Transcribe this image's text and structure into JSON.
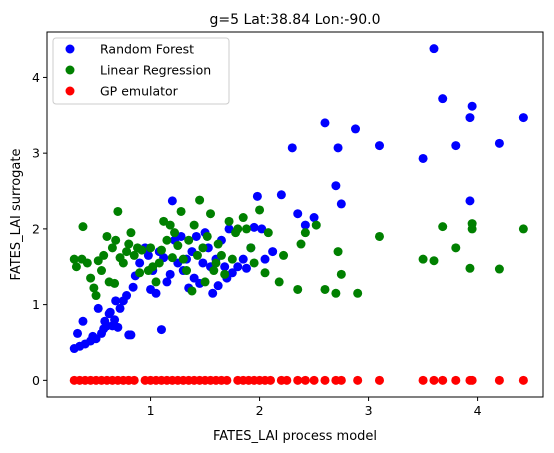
{
  "chart_data": {
    "type": "scatter",
    "title": "g=5 Lat:38.84 Lon:-90.0",
    "xlabel": "FATES_LAI process model",
    "ylabel": "FATES_LAI surrogate",
    "xlim": [
      0.05,
      4.6
    ],
    "ylim": [
      -0.22,
      4.6
    ],
    "xticks": [
      1,
      2,
      3,
      4
    ],
    "yticks": [
      0,
      1,
      2,
      3,
      4
    ],
    "grid": false,
    "legend_position": "upper-left",
    "series": [
      {
        "name": "Random Forest",
        "color": "#0000ff",
        "points": [
          [
            0.3,
            0.42
          ],
          [
            0.33,
            0.62
          ],
          [
            0.35,
            0.45
          ],
          [
            0.38,
            0.78
          ],
          [
            0.4,
            0.48
          ],
          [
            0.45,
            0.52
          ],
          [
            0.47,
            0.58
          ],
          [
            0.5,
            0.55
          ],
          [
            0.52,
            0.95
          ],
          [
            0.55,
            0.62
          ],
          [
            0.57,
            0.68
          ],
          [
            0.58,
            0.78
          ],
          [
            0.6,
            0.72
          ],
          [
            0.62,
            0.88
          ],
          [
            0.63,
            0.9
          ],
          [
            0.65,
            0.72
          ],
          [
            0.67,
            0.8
          ],
          [
            0.68,
            1.05
          ],
          [
            0.7,
            0.7
          ],
          [
            0.72,
            0.95
          ],
          [
            0.75,
            1.05
          ],
          [
            0.78,
            1.12
          ],
          [
            0.8,
            0.6
          ],
          [
            0.82,
            0.6
          ],
          [
            0.84,
            1.23
          ],
          [
            0.86,
            1.38
          ],
          [
            0.9,
            1.55
          ],
          [
            0.95,
            1.75
          ],
          [
            0.98,
            1.65
          ],
          [
            1.0,
            1.2
          ],
          [
            1.02,
            1.45
          ],
          [
            1.05,
            1.15
          ],
          [
            1.08,
            1.7
          ],
          [
            1.1,
            0.67
          ],
          [
            1.12,
            1.62
          ],
          [
            1.15,
            1.3
          ],
          [
            1.18,
            1.4
          ],
          [
            1.2,
            2.37
          ],
          [
            1.22,
            1.85
          ],
          [
            1.25,
            1.55
          ],
          [
            1.28,
            1.9
          ],
          [
            1.3,
            1.45
          ],
          [
            1.33,
            1.6
          ],
          [
            1.35,
            1.22
          ],
          [
            1.38,
            1.7
          ],
          [
            1.4,
            1.35
          ],
          [
            1.42,
            1.9
          ],
          [
            1.45,
            1.28
          ],
          [
            1.48,
            1.55
          ],
          [
            1.5,
            1.95
          ],
          [
            1.53,
            1.75
          ],
          [
            1.55,
            1.5
          ],
          [
            1.57,
            1.15
          ],
          [
            1.6,
            1.6
          ],
          [
            1.62,
            1.25
          ],
          [
            1.65,
            1.85
          ],
          [
            1.68,
            1.5
          ],
          [
            1.7,
            1.35
          ],
          [
            1.72,
            2.0
          ],
          [
            1.75,
            1.42
          ],
          [
            1.8,
            1.5
          ],
          [
            1.85,
            1.6
          ],
          [
            1.88,
            1.48
          ],
          [
            1.92,
            1.75
          ],
          [
            1.95,
            2.02
          ],
          [
            1.98,
            2.43
          ],
          [
            2.02,
            2.0
          ],
          [
            2.05,
            1.6
          ],
          [
            2.12,
            1.7
          ],
          [
            2.2,
            2.45
          ],
          [
            2.3,
            3.07
          ],
          [
            2.35,
            2.2
          ],
          [
            2.42,
            2.05
          ],
          [
            2.5,
            2.15
          ],
          [
            2.6,
            3.4
          ],
          [
            2.7,
            2.57
          ],
          [
            2.72,
            3.07
          ],
          [
            2.75,
            2.33
          ],
          [
            2.88,
            3.32
          ],
          [
            3.1,
            3.1
          ],
          [
            3.5,
            2.93
          ],
          [
            3.6,
            4.38
          ],
          [
            3.68,
            3.72
          ],
          [
            3.8,
            3.1
          ],
          [
            3.93,
            2.37
          ],
          [
            3.93,
            3.47
          ],
          [
            3.95,
            3.62
          ],
          [
            4.2,
            3.13
          ],
          [
            4.42,
            3.47
          ]
        ]
      },
      {
        "name": "Linear Regression",
        "color": "#008000",
        "points": [
          [
            0.3,
            1.6
          ],
          [
            0.32,
            1.5
          ],
          [
            0.37,
            1.6
          ],
          [
            0.38,
            2.03
          ],
          [
            0.42,
            1.55
          ],
          [
            0.45,
            1.35
          ],
          [
            0.48,
            1.22
          ],
          [
            0.5,
            1.12
          ],
          [
            0.52,
            1.58
          ],
          [
            0.55,
            1.45
          ],
          [
            0.57,
            1.65
          ],
          [
            0.6,
            1.9
          ],
          [
            0.62,
            1.3
          ],
          [
            0.65,
            1.75
          ],
          [
            0.67,
            1.28
          ],
          [
            0.68,
            1.85
          ],
          [
            0.7,
            2.23
          ],
          [
            0.72,
            1.62
          ],
          [
            0.75,
            1.55
          ],
          [
            0.78,
            1.7
          ],
          [
            0.8,
            1.8
          ],
          [
            0.82,
            1.95
          ],
          [
            0.85,
            1.65
          ],
          [
            0.88,
            1.75
          ],
          [
            0.9,
            1.42
          ],
          [
            0.92,
            1.72
          ],
          [
            0.98,
            1.45
          ],
          [
            1.0,
            1.75
          ],
          [
            1.02,
            1.5
          ],
          [
            1.05,
            1.3
          ],
          [
            1.08,
            1.55
          ],
          [
            1.1,
            1.72
          ],
          [
            1.12,
            2.1
          ],
          [
            1.15,
            1.85
          ],
          [
            1.18,
            2.05
          ],
          [
            1.2,
            1.62
          ],
          [
            1.22,
            1.95
          ],
          [
            1.25,
            1.78
          ],
          [
            1.28,
            2.23
          ],
          [
            1.3,
            1.6
          ],
          [
            1.33,
            1.45
          ],
          [
            1.35,
            1.85
          ],
          [
            1.38,
            1.18
          ],
          [
            1.4,
            2.05
          ],
          [
            1.43,
            1.65
          ],
          [
            1.45,
            2.38
          ],
          [
            1.48,
            1.75
          ],
          [
            1.5,
            1.3
          ],
          [
            1.52,
            1.9
          ],
          [
            1.55,
            2.2
          ],
          [
            1.58,
            1.45
          ],
          [
            1.6,
            1.55
          ],
          [
            1.62,
            1.8
          ],
          [
            1.65,
            1.65
          ],
          [
            1.68,
            1.4
          ],
          [
            1.72,
            2.1
          ],
          [
            1.75,
            1.6
          ],
          [
            1.78,
            1.95
          ],
          [
            1.8,
            2.0
          ],
          [
            1.85,
            2.15
          ],
          [
            1.88,
            2.0
          ],
          [
            1.92,
            1.75
          ],
          [
            1.95,
            1.55
          ],
          [
            2.0,
            2.25
          ],
          [
            2.05,
            1.42
          ],
          [
            2.08,
            1.95
          ],
          [
            2.18,
            1.3
          ],
          [
            2.22,
            1.65
          ],
          [
            2.35,
            1.2
          ],
          [
            2.38,
            1.8
          ],
          [
            2.42,
            1.95
          ],
          [
            2.52,
            2.05
          ],
          [
            2.6,
            1.2
          ],
          [
            2.7,
            1.15
          ],
          [
            2.72,
            1.7
          ],
          [
            2.75,
            1.4
          ],
          [
            2.9,
            1.15
          ],
          [
            3.1,
            1.9
          ],
          [
            3.5,
            1.6
          ],
          [
            3.6,
            1.58
          ],
          [
            3.68,
            2.03
          ],
          [
            3.8,
            1.75
          ],
          [
            3.93,
            1.48
          ],
          [
            3.95,
            2.0
          ],
          [
            3.95,
            2.07
          ],
          [
            4.2,
            1.47
          ],
          [
            4.42,
            2.0
          ]
        ]
      },
      {
        "name": "GP emulator",
        "color": "#ff0000",
        "points": [
          [
            0.3,
            0
          ],
          [
            0.35,
            0
          ],
          [
            0.4,
            0
          ],
          [
            0.45,
            0
          ],
          [
            0.5,
            0
          ],
          [
            0.55,
            0
          ],
          [
            0.6,
            0
          ],
          [
            0.65,
            0
          ],
          [
            0.7,
            0
          ],
          [
            0.75,
            0
          ],
          [
            0.8,
            0
          ],
          [
            0.85,
            0
          ],
          [
            0.95,
            0
          ],
          [
            1.0,
            0
          ],
          [
            1.05,
            0
          ],
          [
            1.1,
            0
          ],
          [
            1.15,
            0
          ],
          [
            1.2,
            0
          ],
          [
            1.25,
            0
          ],
          [
            1.3,
            0
          ],
          [
            1.35,
            0
          ],
          [
            1.4,
            0
          ],
          [
            1.45,
            0
          ],
          [
            1.5,
            0
          ],
          [
            1.55,
            0
          ],
          [
            1.6,
            0
          ],
          [
            1.65,
            0
          ],
          [
            1.7,
            0
          ],
          [
            1.8,
            0
          ],
          [
            1.85,
            0
          ],
          [
            1.9,
            0
          ],
          [
            1.95,
            0
          ],
          [
            2.0,
            0
          ],
          [
            2.05,
            0
          ],
          [
            2.1,
            0
          ],
          [
            2.2,
            0
          ],
          [
            2.25,
            0
          ],
          [
            2.35,
            0
          ],
          [
            2.42,
            0
          ],
          [
            2.5,
            0
          ],
          [
            2.6,
            0
          ],
          [
            2.7,
            0
          ],
          [
            2.75,
            0
          ],
          [
            2.9,
            0
          ],
          [
            3.1,
            0
          ],
          [
            3.5,
            0
          ],
          [
            3.6,
            0
          ],
          [
            3.68,
            0
          ],
          [
            3.8,
            0
          ],
          [
            3.93,
            0
          ],
          [
            3.95,
            0
          ],
          [
            4.2,
            0
          ],
          [
            4.42,
            0
          ]
        ]
      }
    ]
  }
}
